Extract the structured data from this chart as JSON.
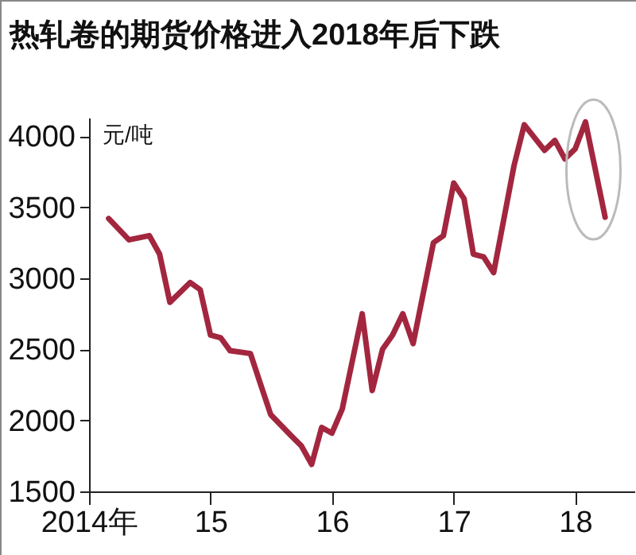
{
  "chart_data": {
    "type": "line",
    "title": "热轧卷的期货价格进入2018年后下跌",
    "ylabel": "元/吨",
    "x": [
      "2014-03",
      "2014-05",
      "2014-07",
      "2014-08",
      "2014-09",
      "2014-11",
      "2014-12",
      "2015-01",
      "2015-02",
      "2015-03",
      "2015-05",
      "2015-06",
      "2015-07",
      "2015-09",
      "2015-10",
      "2015-11",
      "2015-12",
      "2016-01",
      "2016-02",
      "2016-04",
      "2016-05",
      "2016-06",
      "2016-07",
      "2016-08",
      "2016-09",
      "2016-11",
      "2016-12",
      "2017-01",
      "2017-02",
      "2017-03",
      "2017-04",
      "2017-05",
      "2017-07",
      "2017-08",
      "2017-10",
      "2017-11",
      "2017-12",
      "2018-01",
      "2018-02",
      "2018-04"
    ],
    "series": [
      {
        "color": "#a3263f",
        "values": [
          3420,
          3270,
          3300,
          3170,
          2830,
          2970,
          2920,
          2600,
          2580,
          2490,
          2470,
          2250,
          2040,
          1890,
          1820,
          1690,
          1950,
          1910,
          2080,
          2750,
          2210,
          2500,
          2600,
          2750,
          2540,
          3250,
          3300,
          3670,
          3560,
          3170,
          3150,
          3040,
          3790,
          4080,
          3900,
          3970,
          3840,
          3910,
          4100,
          3430
        ]
      }
    ],
    "xlim": [
      "2014-01-01",
      "2018-06-28"
    ],
    "xticks": [
      {
        "value": "2014",
        "label": "2014年"
      },
      {
        "value": "2015",
        "label": "15"
      },
      {
        "value": "2016",
        "label": "16"
      },
      {
        "value": "2017",
        "label": "17"
      },
      {
        "value": "2018",
        "label": "18"
      }
    ],
    "ylim": [
      1500,
      4130
    ],
    "yticks": [
      1500,
      2000,
      2500,
      3000,
      3500,
      4000
    ],
    "grid": false,
    "line_style": "solid",
    "marker": "none"
  }
}
